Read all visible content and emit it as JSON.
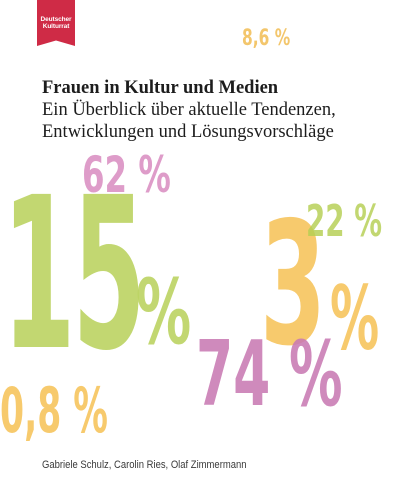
{
  "logo": {
    "line1": "Deutscher",
    "line2": "Kulturrat",
    "color": "#cf2b46"
  },
  "title": "Frauen in Kultur und Medien",
  "subtitle": {
    "line1": "Ein Überblick über aktuelle Tendenzen,",
    "line2": "Entwicklungen und Lösungsvorschläge"
  },
  "figures": {
    "top_right": "8,6 %",
    "pink_upper": "62 %",
    "green_large_number": "15",
    "green_large_percent": "%",
    "green_small": "22 %",
    "orange_large_number": "3",
    "orange_large_percent": "%",
    "pink_lower": "74 %",
    "orange_lower_left": "0,8 %"
  },
  "colors": {
    "green": "#b5cf53",
    "orange": "#f6c35a",
    "pink": "#c97ab3",
    "light_pink": "#d98bc0"
  },
  "authors": "Gabriele Schulz, Carolin Ries, Olaf Zimmermann"
}
